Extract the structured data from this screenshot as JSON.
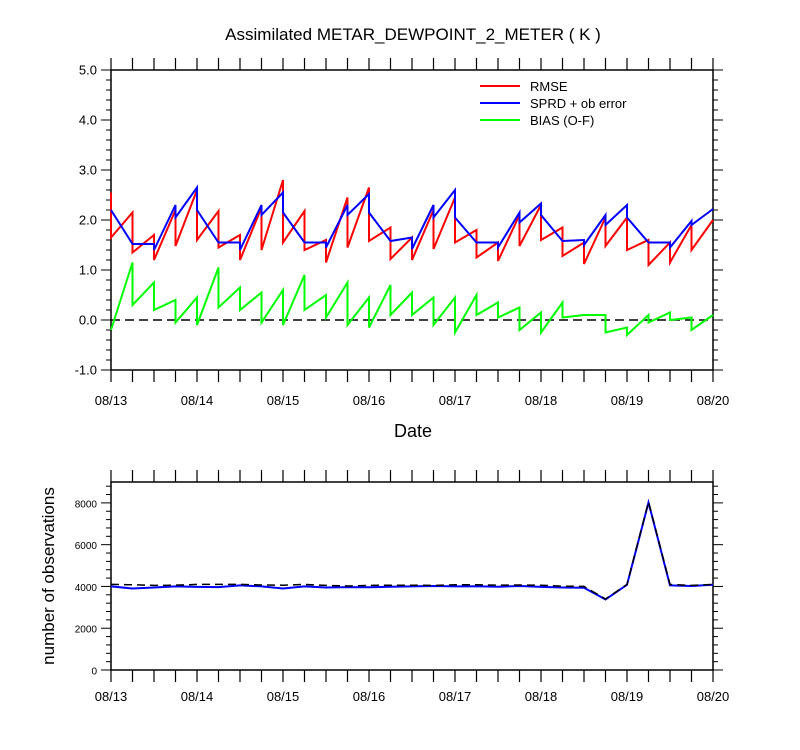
{
  "chart_data": [
    {
      "type": "line",
      "title": "Assimilated METAR_DEWPOINT_2_METER ( K )",
      "xlabel": "Date",
      "ylabel": "",
      "ylim": [
        -1.0,
        5.0
      ],
      "yticks": [
        "-1.0",
        "0.0",
        "1.0",
        "2.0",
        "3.0",
        "4.0",
        "5.0"
      ],
      "xlim": [
        0,
        7
      ],
      "xticks": [
        "08/13",
        "08/14",
        "08/15",
        "08/16",
        "08/17",
        "08/18",
        "08/19",
        "08/20"
      ],
      "legend_position": "top-right",
      "zero_line": true,
      "series": [
        {
          "name": "RMSE",
          "color": "#ff0000",
          "points": [
            [
              0.0,
              2.55
            ],
            [
              0.0,
              1.65
            ],
            [
              0.25,
              2.15
            ],
            [
              0.25,
              1.35
            ],
            [
              0.5,
              1.7
            ],
            [
              0.5,
              1.2
            ],
            [
              0.75,
              2.2
            ],
            [
              0.75,
              1.48
            ],
            [
              1.0,
              2.6
            ],
            [
              1.0,
              1.6
            ],
            [
              1.25,
              2.18
            ],
            [
              1.25,
              1.45
            ],
            [
              1.5,
              1.7
            ],
            [
              1.5,
              1.2
            ],
            [
              1.75,
              2.25
            ],
            [
              1.75,
              1.4
            ],
            [
              2.0,
              2.8
            ],
            [
              2.0,
              1.55
            ],
            [
              2.25,
              2.18
            ],
            [
              2.25,
              1.4
            ],
            [
              2.5,
              1.6
            ],
            [
              2.5,
              1.15
            ],
            [
              2.75,
              2.45
            ],
            [
              2.75,
              1.45
            ],
            [
              3.0,
              2.65
            ],
            [
              3.0,
              1.58
            ],
            [
              3.25,
              1.85
            ],
            [
              3.25,
              1.22
            ],
            [
              3.5,
              1.65
            ],
            [
              3.5,
              1.2
            ],
            [
              3.75,
              2.2
            ],
            [
              3.75,
              1.42
            ],
            [
              4.0,
              2.45
            ],
            [
              4.0,
              1.55
            ],
            [
              4.25,
              1.8
            ],
            [
              4.25,
              1.25
            ],
            [
              4.5,
              1.55
            ],
            [
              4.5,
              1.18
            ],
            [
              4.75,
              2.1
            ],
            [
              4.75,
              1.48
            ],
            [
              5.0,
              2.3
            ],
            [
              5.0,
              1.6
            ],
            [
              5.25,
              1.85
            ],
            [
              5.25,
              1.28
            ],
            [
              5.5,
              1.55
            ],
            [
              5.5,
              1.12
            ],
            [
              5.75,
              2.05
            ],
            [
              5.75,
              1.48
            ],
            [
              6.0,
              2.05
            ],
            [
              6.0,
              1.4
            ],
            [
              6.25,
              1.6
            ],
            [
              6.25,
              1.1
            ],
            [
              6.5,
              1.55
            ],
            [
              6.5,
              1.15
            ],
            [
              6.75,
              1.9
            ],
            [
              6.75,
              1.4
            ],
            [
              7.0,
              2.0
            ]
          ]
        },
        {
          "name": "SPRD + ob error",
          "color": "#0000ff",
          "points": [
            [
              0.0,
              2.2
            ],
            [
              0.25,
              1.52
            ],
            [
              0.5,
              1.52
            ],
            [
              0.5,
              1.4
            ],
            [
              0.75,
              2.3
            ],
            [
              0.75,
              2.05
            ],
            [
              1.0,
              2.65
            ],
            [
              1.0,
              2.2
            ],
            [
              1.25,
              1.55
            ],
            [
              1.5,
              1.55
            ],
            [
              1.5,
              1.4
            ],
            [
              1.75,
              2.3
            ],
            [
              1.75,
              2.1
            ],
            [
              2.0,
              2.55
            ],
            [
              2.0,
              2.15
            ],
            [
              2.25,
              1.55
            ],
            [
              2.5,
              1.55
            ],
            [
              2.5,
              1.45
            ],
            [
              2.75,
              2.3
            ],
            [
              2.75,
              2.1
            ],
            [
              3.0,
              2.52
            ],
            [
              3.0,
              2.15
            ],
            [
              3.25,
              1.58
            ],
            [
              3.5,
              1.65
            ],
            [
              3.5,
              1.42
            ],
            [
              3.75,
              2.3
            ],
            [
              3.75,
              2.05
            ],
            [
              4.0,
              2.6
            ],
            [
              4.0,
              2.05
            ],
            [
              4.25,
              1.55
            ],
            [
              4.5,
              1.55
            ],
            [
              4.5,
              1.45
            ],
            [
              4.75,
              2.15
            ],
            [
              4.75,
              1.95
            ],
            [
              5.0,
              2.33
            ],
            [
              5.0,
              2.1
            ],
            [
              5.25,
              1.58
            ],
            [
              5.5,
              1.6
            ],
            [
              5.5,
              1.5
            ],
            [
              5.75,
              2.1
            ],
            [
              5.75,
              1.9
            ],
            [
              6.0,
              2.3
            ],
            [
              6.0,
              2.05
            ],
            [
              6.25,
              1.55
            ],
            [
              6.5,
              1.55
            ],
            [
              6.5,
              1.45
            ],
            [
              6.75,
              1.98
            ],
            [
              6.75,
              1.9
            ],
            [
              7.0,
              2.22
            ]
          ]
        },
        {
          "name": "BIAS (O-F)",
          "color": "#00ff00",
          "points": [
            [
              0.0,
              -0.2
            ],
            [
              0.25,
              1.15
            ],
            [
              0.25,
              0.3
            ],
            [
              0.5,
              0.75
            ],
            [
              0.5,
              0.2
            ],
            [
              0.75,
              0.4
            ],
            [
              0.75,
              -0.05
            ],
            [
              1.0,
              0.45
            ],
            [
              1.0,
              -0.1
            ],
            [
              1.25,
              1.05
            ],
            [
              1.25,
              0.25
            ],
            [
              1.5,
              0.65
            ],
            [
              1.5,
              0.2
            ],
            [
              1.75,
              0.55
            ],
            [
              1.75,
              -0.05
            ],
            [
              2.0,
              0.6
            ],
            [
              2.0,
              -0.1
            ],
            [
              2.25,
              0.9
            ],
            [
              2.25,
              0.2
            ],
            [
              2.5,
              0.5
            ],
            [
              2.5,
              0.05
            ],
            [
              2.75,
              0.75
            ],
            [
              2.75,
              -0.1
            ],
            [
              3.0,
              0.45
            ],
            [
              3.0,
              -0.15
            ],
            [
              3.25,
              0.7
            ],
            [
              3.25,
              0.1
            ],
            [
              3.5,
              0.55
            ],
            [
              3.5,
              0.1
            ],
            [
              3.75,
              0.45
            ],
            [
              3.75,
              -0.1
            ],
            [
              4.0,
              0.45
            ],
            [
              4.0,
              -0.25
            ],
            [
              4.25,
              0.5
            ],
            [
              4.25,
              0.1
            ],
            [
              4.5,
              0.35
            ],
            [
              4.5,
              0.05
            ],
            [
              4.75,
              0.25
            ],
            [
              4.75,
              -0.2
            ],
            [
              5.0,
              0.15
            ],
            [
              5.0,
              -0.25
            ],
            [
              5.25,
              0.35
            ],
            [
              5.25,
              0.05
            ],
            [
              5.5,
              0.1
            ],
            [
              5.75,
              0.1
            ],
            [
              5.75,
              -0.25
            ],
            [
              6.0,
              -0.15
            ],
            [
              6.0,
              -0.3
            ],
            [
              6.25,
              0.1
            ],
            [
              6.25,
              -0.05
            ],
            [
              6.5,
              0.15
            ],
            [
              6.5,
              0.0
            ],
            [
              6.75,
              0.05
            ],
            [
              6.75,
              -0.2
            ],
            [
              7.0,
              0.1
            ]
          ]
        }
      ]
    },
    {
      "type": "line",
      "title": "",
      "xlabel": "",
      "ylabel": "number of observations",
      "ylim": [
        0,
        9000
      ],
      "yticks": [
        "0",
        "2000",
        "4000",
        "6000",
        "8000"
      ],
      "xlim": [
        0,
        7
      ],
      "xticks": [
        "08/13",
        "08/14",
        "08/15",
        "08/16",
        "08/17",
        "08/18",
        "08/19",
        "08/20"
      ],
      "x": [
        0,
        0.25,
        0.5,
        0.75,
        1.0,
        1.25,
        1.5,
        1.75,
        2.0,
        2.25,
        2.5,
        2.75,
        3.0,
        3.25,
        3.5,
        3.75,
        4.0,
        4.25,
        4.5,
        4.75,
        5.0,
        5.25,
        5.5,
        5.75,
        6.0,
        6.25,
        6.5,
        6.75,
        7.0
      ],
      "series": [
        {
          "line_style": "solid",
          "color": "#0000ff",
          "values": [
            4000,
            3900,
            3950,
            4000,
            3980,
            3970,
            4050,
            4000,
            3900,
            4000,
            3950,
            3970,
            3960,
            3990,
            4000,
            4020,
            4000,
            4010,
            3990,
            4020,
            3980,
            3950,
            3940,
            3380,
            4080,
            8020,
            4050,
            4020,
            4080
          ]
        },
        {
          "line_style": "dashed",
          "color": "#000000",
          "values": [
            4100,
            4080,
            4050,
            4060,
            4100,
            4100,
            4100,
            4070,
            4060,
            4100,
            4050,
            4020,
            4050,
            4060,
            4060,
            4050,
            4080,
            4080,
            4060,
            4070,
            4060,
            4010,
            4000,
            3400,
            4100,
            8050,
            4100,
            4050,
            4100
          ]
        }
      ]
    }
  ]
}
